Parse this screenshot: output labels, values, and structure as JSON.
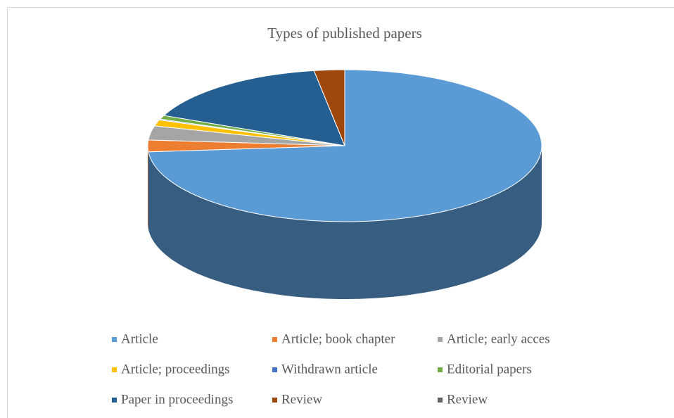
{
  "chart_data": {
    "type": "pie3d",
    "title": "Types  of published papers",
    "categories": [
      "Article",
      "Article; book chapter",
      "Article; early acces",
      "Article; proceedings",
      "Withdrawn article",
      "Editorial papers",
      "Paper in proceedings",
      "Review",
      "Review"
    ],
    "values": [
      73.7,
      2.5,
      3,
      1.3,
      0.2,
      0.8,
      16,
      2.5,
      0
    ],
    "colors": [
      "#5b9bd5",
      "#ed7d31",
      "#a5a5a5",
      "#ffc000",
      "#4472c4",
      "#70ad47",
      "#255e91",
      "#9e480e",
      "#636363"
    ],
    "legend": "bottom"
  }
}
